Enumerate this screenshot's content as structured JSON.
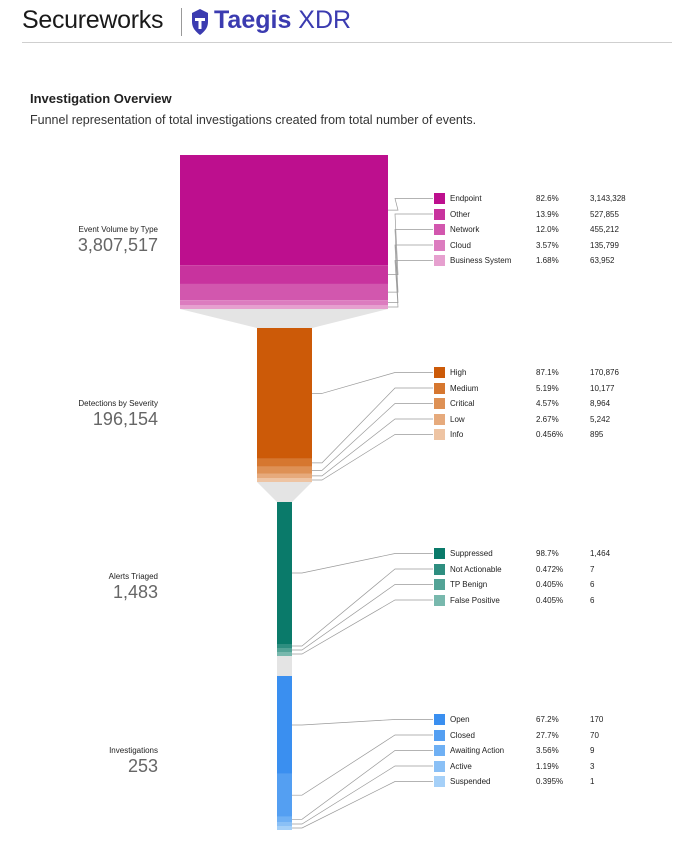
{
  "header": {
    "brand_left": "Secureworks",
    "brand_right_bold": "Taegis",
    "brand_right_light": " XDR",
    "brand_color": "#3b3bb0"
  },
  "overview": {
    "title": "Investigation Overview",
    "subtitle": "Funnel representation of total investigations created from total number of events."
  },
  "chart_data": {
    "type": "funnel",
    "stages": [
      {
        "label": "Event Volume by Type",
        "total": "3,807,517",
        "items": [
          {
            "name": "Endpoint",
            "percent": "82.6%",
            "count": "3,143,328",
            "value": 3143328,
            "color": "#bd0f8e"
          },
          {
            "name": "Other",
            "percent": "13.9%",
            "count": "527,855",
            "value": 527855,
            "color": "#c8339e"
          },
          {
            "name": "Network",
            "percent": "12.0%",
            "count": "455,212",
            "value": 455212,
            "color": "#d257ae"
          },
          {
            "name": "Cloud",
            "percent": "3.57%",
            "count": "135,799",
            "value": 135799,
            "color": "#dc7cbf"
          },
          {
            "name": "Business System",
            "percent": "1.68%",
            "count": "63,952",
            "value": 63952,
            "color": "#e6a0cf"
          }
        ]
      },
      {
        "label": "Detections by Severity",
        "total": "196,154",
        "items": [
          {
            "name": "High",
            "percent": "87.1%",
            "count": "170,876",
            "value": 170876,
            "color": "#cc5a08"
          },
          {
            "name": "Medium",
            "percent": "5.19%",
            "count": "10,177",
            "value": 10177,
            "color": "#d6772f"
          },
          {
            "name": "Critical",
            "percent": "4.57%",
            "count": "8,964",
            "value": 8964,
            "color": "#de9155"
          },
          {
            "name": "Low",
            "percent": "2.67%",
            "count": "5,242",
            "value": 5242,
            "color": "#e6aa7c"
          },
          {
            "name": "Info",
            "percent": "0.456%",
            "count": "895",
            "value": 895,
            "color": "#eec4a3"
          }
        ]
      },
      {
        "label": "Alerts Triaged",
        "total": "1,483",
        "items": [
          {
            "name": "Suppressed",
            "percent": "98.7%",
            "count": "1,464",
            "value": 1464,
            "color": "#0a7a6a"
          },
          {
            "name": "Not Actionable",
            "percent": "0.472%",
            "count": "7",
            "value": 7,
            "color": "#2e8e80"
          },
          {
            "name": "TP Benign",
            "percent": "0.405%",
            "count": "6",
            "value": 6,
            "color": "#53a396"
          },
          {
            "name": "False Positive",
            "percent": "0.405%",
            "count": "6",
            "value": 6,
            "color": "#78b8ad"
          }
        ]
      },
      {
        "label": "Investigations",
        "total": "253",
        "items": [
          {
            "name": "Open",
            "percent": "67.2%",
            "count": "170",
            "value": 170,
            "color": "#3a8ff0"
          },
          {
            "name": "Closed",
            "percent": "27.7%",
            "count": "70",
            "value": 70,
            "color": "#549ff2"
          },
          {
            "name": "Awaiting Action",
            "percent": "3.56%",
            "count": "9",
            "value": 9,
            "color": "#6fb0f4"
          },
          {
            "name": "Active",
            "percent": "1.19%",
            "count": "3",
            "value": 3,
            "color": "#8ac0f6"
          },
          {
            "name": "Suspended",
            "percent": "0.395%",
            "count": "1",
            "value": 1,
            "color": "#a5d0f8"
          }
        ]
      }
    ]
  }
}
